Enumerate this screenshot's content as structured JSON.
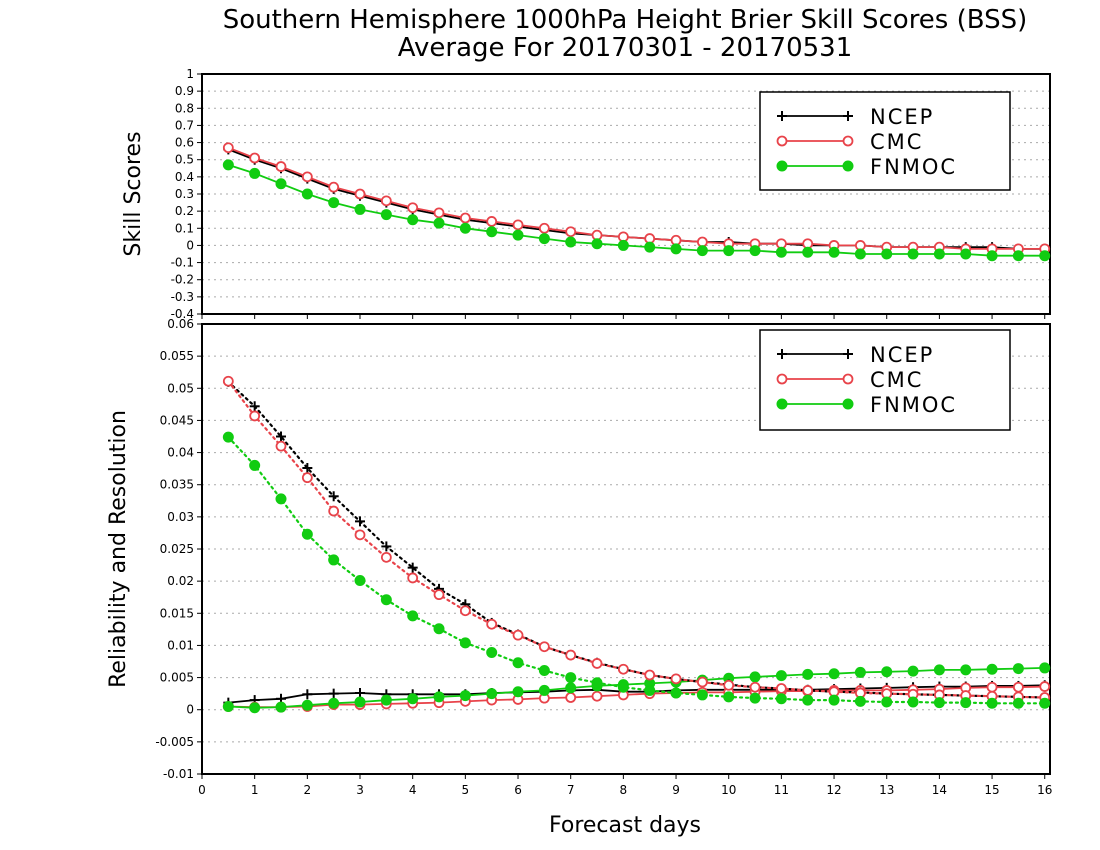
{
  "title_line1": "Southern Hemisphere 1000hPa Height Brier Skill Scores (BSS)",
  "title_line2": "Average For 20170301 - 20170531",
  "xlabel": "Forecast days",
  "colors": {
    "NCEP": "#000000",
    "CMC": "#e8434a",
    "FNMOC": "#11cc11",
    "grid": "#aaaaaa"
  },
  "chart_data": [
    {
      "type": "line",
      "ylabel": "Skill Scores",
      "xlim": [
        0,
        16.1
      ],
      "ylim": [
        -0.4,
        1
      ],
      "x_ticks": [
        0,
        1,
        2,
        3,
        4,
        5,
        6,
        7,
        8,
        9,
        10,
        11,
        12,
        13,
        14,
        15,
        16
      ],
      "y_ticks": [
        -0.4,
        -0.3,
        -0.2,
        -0.1,
        0,
        0.1,
        0.2,
        0.3,
        0.4,
        0.5,
        0.6,
        0.7,
        0.8,
        0.9,
        1
      ],
      "y_tick_labels": [
        "-0.4",
        "-0.3",
        "-0.2",
        "-0.1",
        "0",
        "0.1",
        "0.2",
        "0.3",
        "0.4",
        "0.5",
        "0.6",
        "0.7",
        "0.8",
        "0.9",
        "1"
      ],
      "grid": true,
      "legend_position": "top-right",
      "x": [
        0.5,
        1,
        1.5,
        2,
        2.5,
        3,
        3.5,
        4,
        4.5,
        5,
        5.5,
        6,
        6.5,
        7,
        7.5,
        8,
        8.5,
        9,
        9.5,
        10,
        10.5,
        11,
        11.5,
        12,
        12.5,
        13,
        13.5,
        14,
        14.5,
        15,
        15.5,
        16
      ],
      "series": [
        {
          "name": "NCEP",
          "marker": "plus",
          "dash": "solid",
          "values": [
            0.56,
            0.5,
            0.45,
            0.39,
            0.33,
            0.29,
            0.25,
            0.21,
            0.18,
            0.15,
            0.13,
            0.11,
            0.09,
            0.07,
            0.06,
            0.05,
            0.04,
            0.03,
            0.02,
            0.02,
            0.01,
            0.01,
            0.0,
            0.0,
            0.0,
            -0.01,
            -0.01,
            -0.01,
            -0.01,
            -0.01,
            -0.02,
            -0.02
          ]
        },
        {
          "name": "CMC",
          "marker": "open-circle",
          "dash": "solid",
          "values": [
            0.57,
            0.51,
            0.46,
            0.4,
            0.34,
            0.3,
            0.26,
            0.22,
            0.19,
            0.16,
            0.14,
            0.12,
            0.1,
            0.08,
            0.06,
            0.05,
            0.04,
            0.03,
            0.02,
            0.01,
            0.01,
            0.01,
            0.01,
            0.0,
            0.0,
            -0.01,
            -0.01,
            -0.01,
            -0.02,
            -0.02,
            -0.02,
            -0.02
          ]
        },
        {
          "name": "FNMOC",
          "marker": "filled-circle",
          "dash": "solid",
          "values": [
            0.47,
            0.42,
            0.36,
            0.3,
            0.25,
            0.21,
            0.18,
            0.15,
            0.13,
            0.1,
            0.08,
            0.06,
            0.04,
            0.02,
            0.01,
            0.0,
            -0.01,
            -0.02,
            -0.03,
            -0.03,
            -0.03,
            -0.04,
            -0.04,
            -0.04,
            -0.05,
            -0.05,
            -0.05,
            -0.05,
            -0.05,
            -0.06,
            -0.06,
            -0.06
          ]
        }
      ]
    },
    {
      "type": "line",
      "ylabel": "Reliability and Resolution",
      "xlim": [
        0,
        16.1
      ],
      "ylim": [
        -0.01,
        0.06
      ],
      "x_ticks": [
        0,
        1,
        2,
        3,
        4,
        5,
        6,
        7,
        8,
        9,
        10,
        11,
        12,
        13,
        14,
        15,
        16
      ],
      "y_ticks": [
        -0.01,
        -0.005,
        0,
        0.005,
        0.01,
        0.015,
        0.02,
        0.025,
        0.03,
        0.035,
        0.04,
        0.045,
        0.05,
        0.055,
        0.06
      ],
      "y_tick_labels": [
        "-0.01",
        "-0.005",
        "0",
        "0.005",
        "0.01",
        "0.015",
        "0.02",
        "0.025",
        "0.03",
        "0.035",
        "0.04",
        "0.045",
        "0.05",
        "0.055",
        "0.06"
      ],
      "grid": true,
      "legend_position": "top-right",
      "x": [
        0.5,
        1,
        1.5,
        2,
        2.5,
        3,
        3.5,
        4,
        4.5,
        5,
        5.5,
        6,
        6.5,
        7,
        7.5,
        8,
        8.5,
        9,
        9.5,
        10,
        10.5,
        11,
        11.5,
        12,
        12.5,
        13,
        13.5,
        14,
        14.5,
        15,
        15.5,
        16
      ],
      "series": [
        {
          "name": "NCEP",
          "role": "reliability",
          "marker": "plus",
          "dash": "solid",
          "values": [
            0.0011,
            0.0015,
            0.0017,
            0.0024,
            0.0025,
            0.0026,
            0.0024,
            0.0024,
            0.0024,
            0.0024,
            0.0026,
            0.0027,
            0.0028,
            0.003,
            0.0031,
            0.0028,
            0.0028,
            0.003,
            0.0031,
            0.0031,
            0.0031,
            0.0031,
            0.0031,
            0.0032,
            0.0033,
            0.0034,
            0.0035,
            0.0036,
            0.0036,
            0.0037,
            0.0037,
            0.0038
          ]
        },
        {
          "name": "CMC",
          "role": "reliability",
          "marker": "open-circle",
          "dash": "solid",
          "values": [
            0.0005,
            0.0004,
            0.0004,
            0.0005,
            0.0008,
            0.0008,
            0.0009,
            0.001,
            0.0011,
            0.0013,
            0.0015,
            0.0016,
            0.0018,
            0.0019,
            0.0021,
            0.0023,
            0.0025,
            0.0026,
            0.0027,
            0.0027,
            0.0028,
            0.0029,
            0.0029,
            0.003,
            0.003,
            0.003,
            0.0031,
            0.0032,
            0.0034,
            0.0035,
            0.0035,
            0.0036
          ]
        },
        {
          "name": "FNMOC",
          "role": "reliability",
          "marker": "filled-circle",
          "dash": "solid",
          "values": [
            0.0005,
            0.0003,
            0.0004,
            0.0007,
            0.001,
            0.0012,
            0.0015,
            0.0017,
            0.002,
            0.0022,
            0.0025,
            0.0028,
            0.003,
            0.0034,
            0.0037,
            0.0039,
            0.0041,
            0.0043,
            0.0046,
            0.0049,
            0.0051,
            0.0053,
            0.0055,
            0.0056,
            0.0058,
            0.0059,
            0.006,
            0.0062,
            0.0062,
            0.0063,
            0.0064,
            0.0065
          ]
        },
        {
          "name": "NCEP",
          "role": "resolution",
          "marker": "plus",
          "dash": "dotted",
          "values": [
            0.051,
            0.0472,
            0.0425,
            0.0376,
            0.0332,
            0.0293,
            0.0254,
            0.0221,
            0.0188,
            0.0164,
            0.0135,
            0.0117,
            0.0098,
            0.0085,
            0.0073,
            0.0063,
            0.0054,
            0.0048,
            0.0043,
            0.0039,
            0.0035,
            0.0033,
            0.003,
            0.0028,
            0.0027,
            0.0025,
            0.0024,
            0.0023,
            0.0022,
            0.0021,
            0.002,
            0.0019
          ]
        },
        {
          "name": "CMC",
          "role": "resolution",
          "marker": "open-circle",
          "dash": "dotted",
          "values": [
            0.0511,
            0.0457,
            0.041,
            0.0361,
            0.0309,
            0.0272,
            0.0237,
            0.0205,
            0.0179,
            0.0154,
            0.0133,
            0.0116,
            0.0098,
            0.0085,
            0.0072,
            0.0063,
            0.0054,
            0.0048,
            0.0043,
            0.0038,
            0.0035,
            0.0033,
            0.003,
            0.0028,
            0.0026,
            0.0025,
            0.0024,
            0.0023,
            0.0022,
            0.0021,
            0.002,
            0.0019
          ]
        },
        {
          "name": "FNMOC",
          "role": "resolution",
          "marker": "filled-circle",
          "dash": "dotted",
          "values": [
            0.0424,
            0.038,
            0.0328,
            0.0273,
            0.0233,
            0.0201,
            0.0171,
            0.0146,
            0.0126,
            0.0104,
            0.0089,
            0.0073,
            0.0061,
            0.005,
            0.0042,
            0.0035,
            0.003,
            0.0026,
            0.0023,
            0.002,
            0.0018,
            0.0017,
            0.0015,
            0.0015,
            0.0013,
            0.0012,
            0.0012,
            0.0011,
            0.0011,
            0.001,
            0.001,
            0.001
          ]
        }
      ]
    }
  ]
}
